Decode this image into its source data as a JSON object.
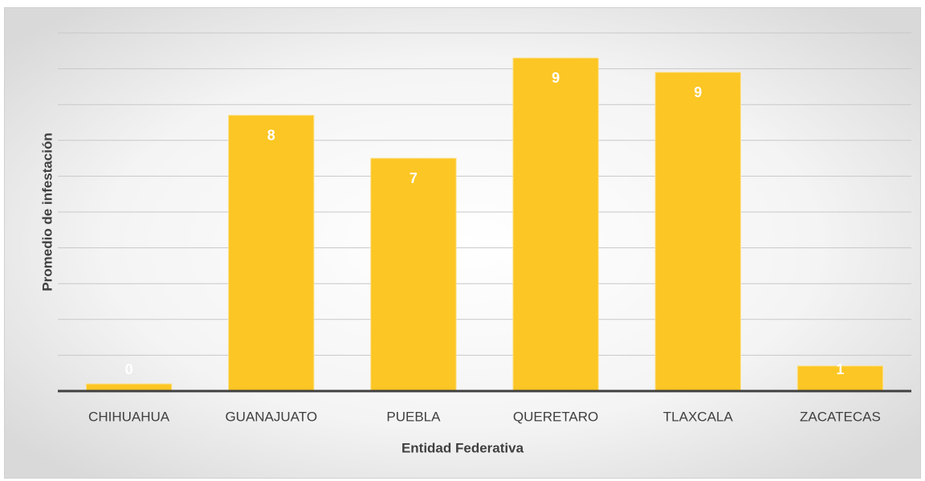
{
  "chart_data": {
    "type": "bar",
    "categories": [
      "CHIHUAHUA",
      "GUANAJUATO",
      "PUEBLA",
      "QUERETARO",
      "TLAXCALA",
      "ZACATECAS"
    ],
    "values": [
      0.2,
      7.7,
      6.5,
      9.3,
      8.9,
      0.7
    ],
    "value_labels": [
      "0",
      "8",
      "7",
      "9",
      "9",
      "1"
    ],
    "color": "#fcc624",
    "xlabel": "Entidad Federativa",
    "ylabel": "Promedio de infestación",
    "ylim": [
      0,
      10
    ],
    "yticks": [
      0,
      1,
      2,
      3,
      4,
      5,
      6,
      7,
      8,
      9,
      10
    ],
    "grid": true
  }
}
